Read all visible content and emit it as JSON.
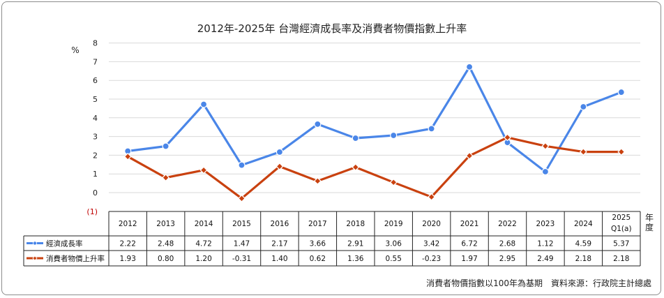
{
  "chart_data": {
    "type": "line",
    "title": "2012年-2025年 台灣經濟成長率及消費者物價指數上升率",
    "ylabel": "%",
    "xlabel": "年\n度",
    "ylim": [
      -1,
      8
    ],
    "yticks": [
      "(1)",
      "0",
      "1",
      "2",
      "3",
      "4",
      "5",
      "6",
      "7",
      "8"
    ],
    "categories": [
      "2012",
      "2013",
      "2014",
      "2015",
      "2016",
      "2017",
      "2018",
      "2019",
      "2020",
      "2021",
      "2022",
      "2023",
      "2024",
      "2025 Q1(a)"
    ],
    "series": [
      {
        "name": "經濟成長率",
        "color": "#4a86e8",
        "marker": "circle",
        "values": [
          2.22,
          2.48,
          4.72,
          1.47,
          2.17,
          3.66,
          2.91,
          3.06,
          3.42,
          6.72,
          2.68,
          1.12,
          4.59,
          5.37
        ],
        "labels": [
          "2.22",
          "2.48",
          "4.72",
          "1.47",
          "2.17",
          "3.66",
          "2.91",
          "3.06",
          "3.42",
          "6.72",
          "2.68",
          "1.12",
          "4.59",
          "5.37"
        ]
      },
      {
        "name": "消費者物價上升率",
        "color": "#c9410f",
        "marker": "diamond",
        "values": [
          1.93,
          0.8,
          1.2,
          -0.31,
          1.4,
          0.62,
          1.36,
          0.55,
          -0.23,
          1.97,
          2.95,
          2.49,
          2.18,
          2.18
        ],
        "labels": [
          "1.93",
          "0.80",
          "1.20",
          "-0.31",
          "1.40",
          "0.62",
          "1.36",
          "0.55",
          "-0.23",
          "1.97",
          "2.95",
          "2.49",
          "2.18",
          "2.18"
        ]
      }
    ],
    "grid": true,
    "legend": "data-table"
  },
  "footnote": "消費者物價指數以100年為基期　資料來源：行政院主計總處"
}
